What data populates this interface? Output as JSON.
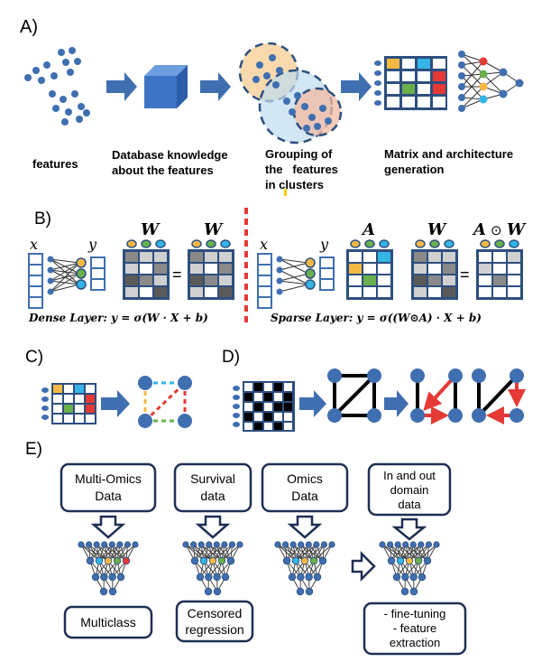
{
  "panels": {
    "a": "A)",
    "b": "B)",
    "c": "C)",
    "d": "D)",
    "e": "E)"
  },
  "panel_a": {
    "step1": "features",
    "step2_line1": "Database knowledge",
    "step2_line2": "about the features",
    "step3_line1": "Grouping of",
    "step3_line2": "the   features",
    "step3_line3": "in clusters",
    "step4_line1": "Matrix and architecture",
    "step4_line2": "generation"
  },
  "panel_b": {
    "x": "x",
    "y": "y",
    "W": "W",
    "A": "A",
    "hadamard": "⊙",
    "equals": "=",
    "dense_caption": "Dense Layer:  y = σ(W · X + b)",
    "sparse_caption": "Sparse Layer:  y = σ((W⊙A) · X + b)"
  },
  "panel_e": {
    "box1_line1": "Multi-Omics",
    "box1_line2": "Data",
    "box2_line1": "Survival",
    "box2_line2": "data",
    "box3_line1": "Omics",
    "box3_line2": "Data",
    "box4_line1": "In and out",
    "box4_line2": "domain",
    "box4_line3": "data",
    "out1": "Multiclass",
    "out2_line1": "Censored",
    "out2_line2": "regression",
    "out4_line1": "- fine-tuning",
    "out4_line2": "- feature",
    "out4_line3": "extraction"
  },
  "colors": {
    "node": "#3f6fb0",
    "node_dark": "#2d4f7f",
    "arrow": "#3f6fb0",
    "orange": "#f5b942",
    "green": "#6ab04c",
    "cyan": "#34b5e5",
    "red": "#e53935",
    "dashed_red": "#e53935",
    "cube": "#3f74c4"
  }
}
